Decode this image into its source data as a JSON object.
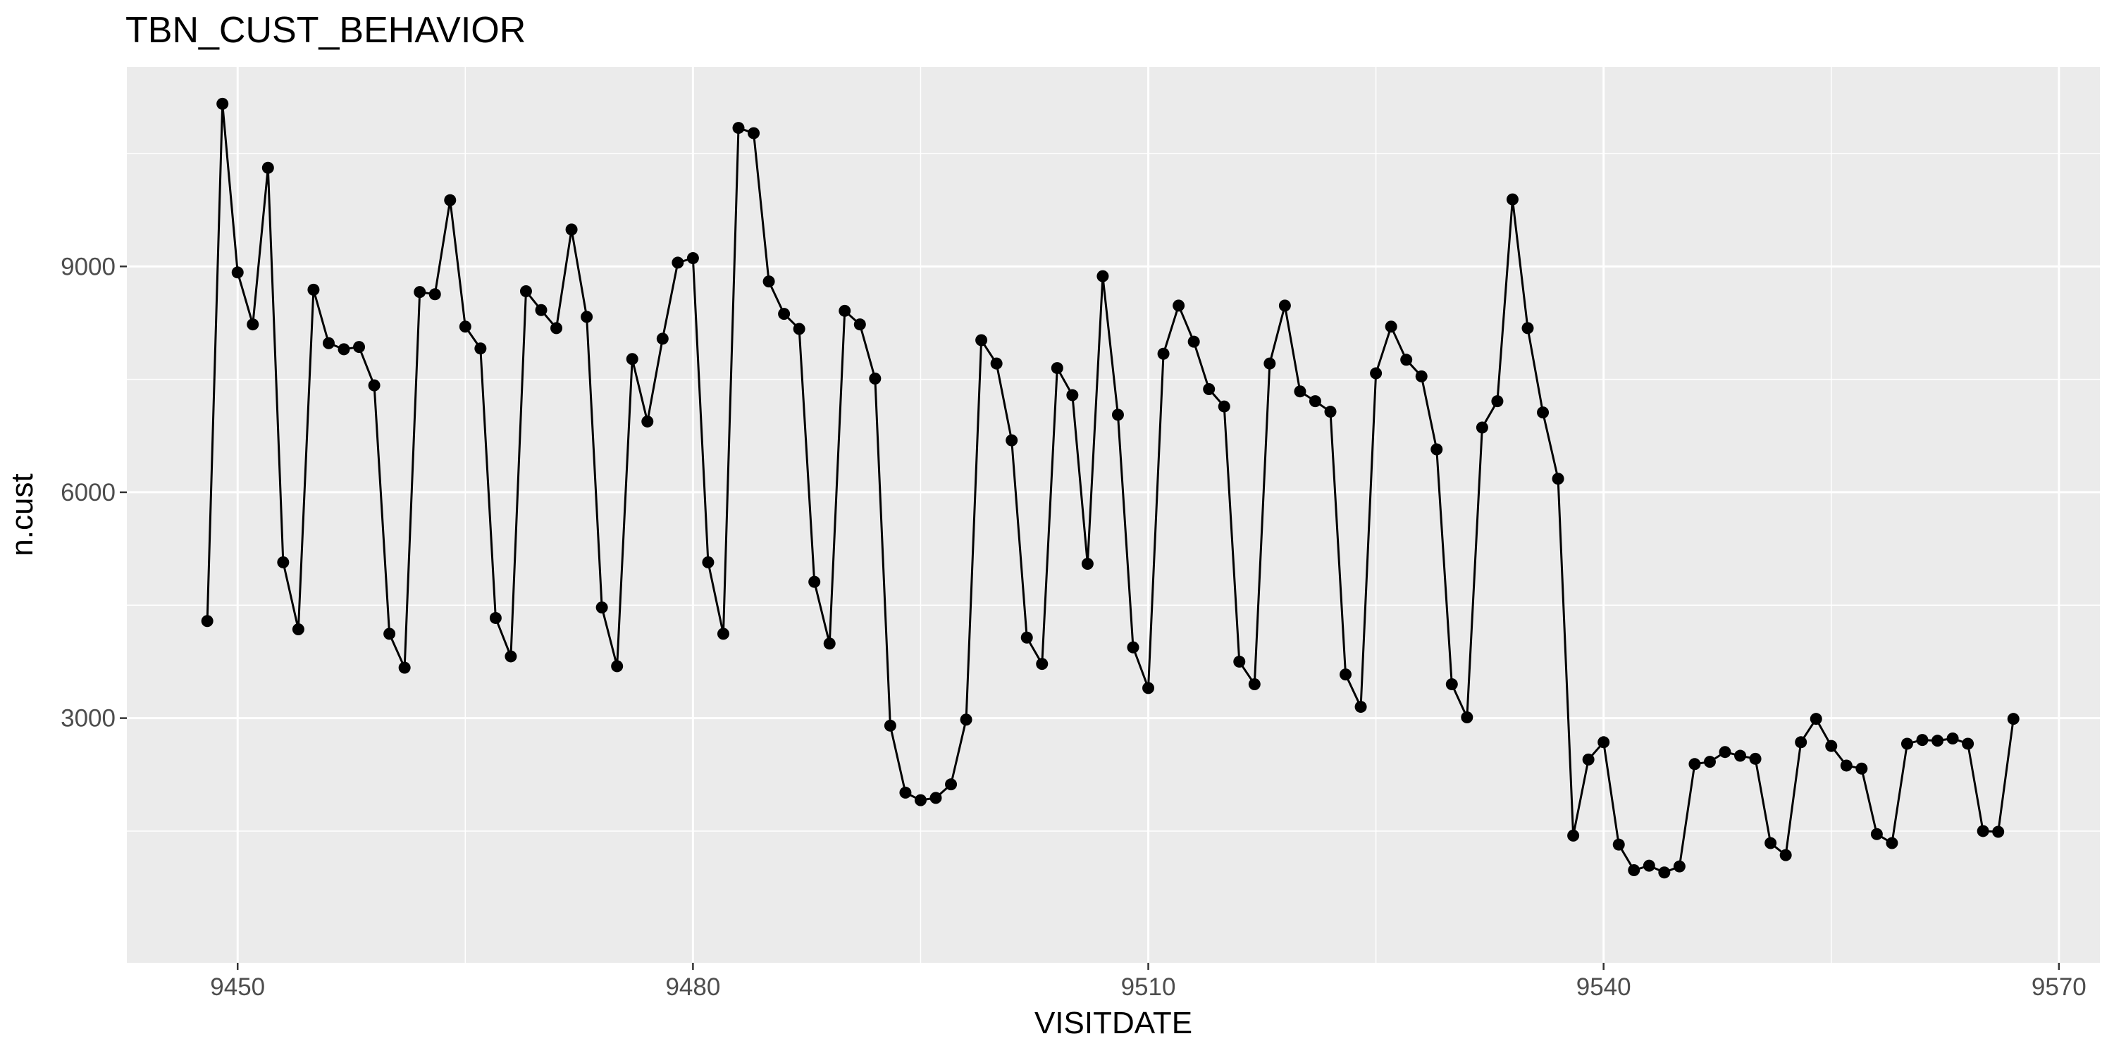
{
  "chart_data": {
    "type": "line",
    "title": "TBN_CUST_BEHAVIOR",
    "xlabel": "VISITDATE",
    "ylabel": "n.cust",
    "xlim": [
      9442.7,
      9572.7
    ],
    "ylim": [
      -250,
      11650
    ],
    "x_ticks": [
      9450,
      9480,
      9510,
      9540,
      9570
    ],
    "x_tick_labels": [
      "9450",
      "9480",
      "9510",
      "9540",
      "9570"
    ],
    "y_ticks": [
      3000,
      6000,
      9000
    ],
    "y_tick_labels": [
      "3000",
      "6000",
      "9000"
    ],
    "grid": true,
    "legend": "none",
    "series": [
      {
        "x": [
          9448,
          9449,
          9450,
          9451,
          9452,
          9453,
          9454,
          9455,
          9456,
          9457,
          9458,
          9459,
          9460,
          9461,
          9462,
          9463,
          9464,
          9465,
          9466,
          9467,
          9468,
          9469,
          9470,
          9471,
          9472,
          9473,
          9474,
          9475,
          9476,
          9477,
          9478,
          9479,
          9480,
          9481,
          9482,
          9483,
          9484,
          9485,
          9486,
          9487,
          9488,
          9489,
          9490,
          9491,
          9492,
          9493,
          9494,
          9495,
          9496,
          9497,
          9498,
          9499,
          9500,
          9501,
          9502,
          9503,
          9504,
          9505,
          9506,
          9507,
          9508,
          9509,
          9510,
          9511,
          9512,
          9513,
          9514,
          9515,
          9516,
          9517,
          9518,
          9519,
          9520,
          9521,
          9522,
          9523,
          9524,
          9525,
          9526,
          9527,
          9528,
          9529,
          9530,
          9531,
          9532,
          9533,
          9534,
          9535,
          9536,
          9537,
          9538,
          9539,
          9540,
          9541,
          9542,
          9543,
          9544,
          9545,
          9546,
          9547,
          9548,
          9549,
          9550,
          9551,
          9552,
          9553,
          9554,
          9555,
          9556,
          9557,
          9558,
          9559,
          9560,
          9561,
          9562,
          9563,
          9564,
          9565,
          9566,
          9567
        ],
        "values": [
          4290,
          11160,
          8920,
          8230,
          10310,
          5070,
          4180,
          8690,
          7980,
          7900,
          7930,
          7420,
          4120,
          3670,
          8660,
          8630,
          9880,
          8200,
          7910,
          4330,
          3820,
          8670,
          8420,
          8180,
          9490,
          8330,
          4470,
          3690,
          7770,
          6940,
          8040,
          9050,
          9110,
          5070,
          4120,
          10840,
          10770,
          8800,
          8370,
          8170,
          4810,
          3990,
          8410,
          8230,
          7510,
          2900,
          2010,
          1910,
          1940,
          2120,
          2980,
          8020,
          7710,
          6690,
          4070,
          3720,
          7650,
          7290,
          5050,
          8870,
          7030,
          3940,
          3400,
          7840,
          8480,
          8000,
          7370,
          7140,
          3750,
          3450,
          7710,
          8480,
          7340,
          7210,
          7070,
          3580,
          3150,
          7580,
          8200,
          7760,
          7540,
          6570,
          3450,
          3010,
          6860,
          7210,
          9890,
          8180,
          7060,
          6180,
          1440,
          2450,
          2680,
          1320,
          980,
          1040,
          950,
          1030,
          2390,
          2420,
          2550,
          2500,
          2460,
          1340,
          1180,
          2680,
          2990,
          2630,
          2370,
          2330,
          1460,
          1340,
          2660,
          2710,
          2700,
          2730,
          2660,
          1500,
          1490,
          2990
        ]
      }
    ]
  }
}
